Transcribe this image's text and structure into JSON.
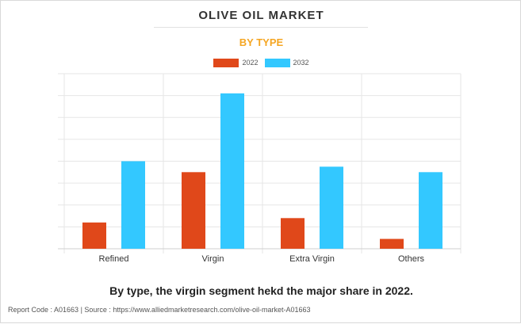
{
  "header": {
    "title": "OLIVE OIL MARKET",
    "subtitle": "BY TYPE"
  },
  "colors": {
    "series_2022": "#e0481a",
    "series_2032": "#33c8ff",
    "grid": "#e6e6e6"
  },
  "chart_data": {
    "type": "bar",
    "title": "OLIVE OIL MARKET",
    "subtitle": "BY TYPE",
    "categories": [
      "Refined",
      "Virgin",
      "Extra Virgin",
      "Others"
    ],
    "series": [
      {
        "name": "2022",
        "values": [
          1.2,
          3.5,
          1.4,
          0.45
        ]
      },
      {
        "name": "2032",
        "values": [
          4.0,
          7.1,
          3.75,
          3.5
        ]
      }
    ],
    "xlabel": "",
    "ylabel": "",
    "ylim": [
      0,
      8
    ],
    "grid": true,
    "legend_position": "top-center"
  },
  "caption": "By type, the virgin segment hekd the major share in 2022.",
  "footer": "Report Code : A01663  |  Source : https://www.alliedmarketresearch.com/olive-oil-market-A01663"
}
